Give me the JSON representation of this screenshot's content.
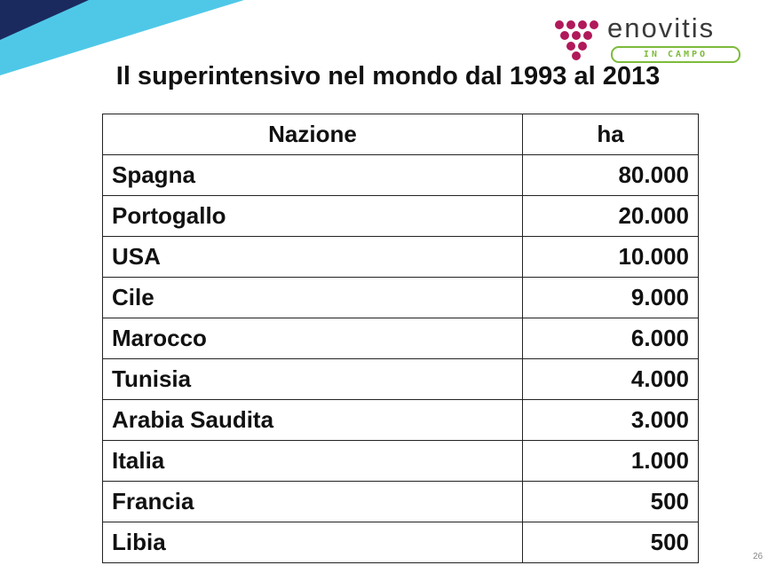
{
  "logo": {
    "name": "enovitis",
    "subtitle": "IN CAMPO"
  },
  "title": "Il superintensivo nel mondo dal 1993 al 2013",
  "table": {
    "header": [
      "Nazione",
      "ha"
    ],
    "rows": [
      [
        "Spagna",
        "80.000"
      ],
      [
        "Portogallo",
        "20.000"
      ],
      [
        "USA",
        "10.000"
      ],
      [
        "Cile",
        "9.000"
      ],
      [
        "Marocco",
        "6.000"
      ],
      [
        "Tunisia",
        "4.000"
      ],
      [
        "Arabia Saudita",
        "3.000"
      ],
      [
        "Italia",
        "1.000"
      ],
      [
        "Francia",
        "500"
      ],
      [
        "Libia",
        "500"
      ]
    ]
  },
  "page_number": "26"
}
